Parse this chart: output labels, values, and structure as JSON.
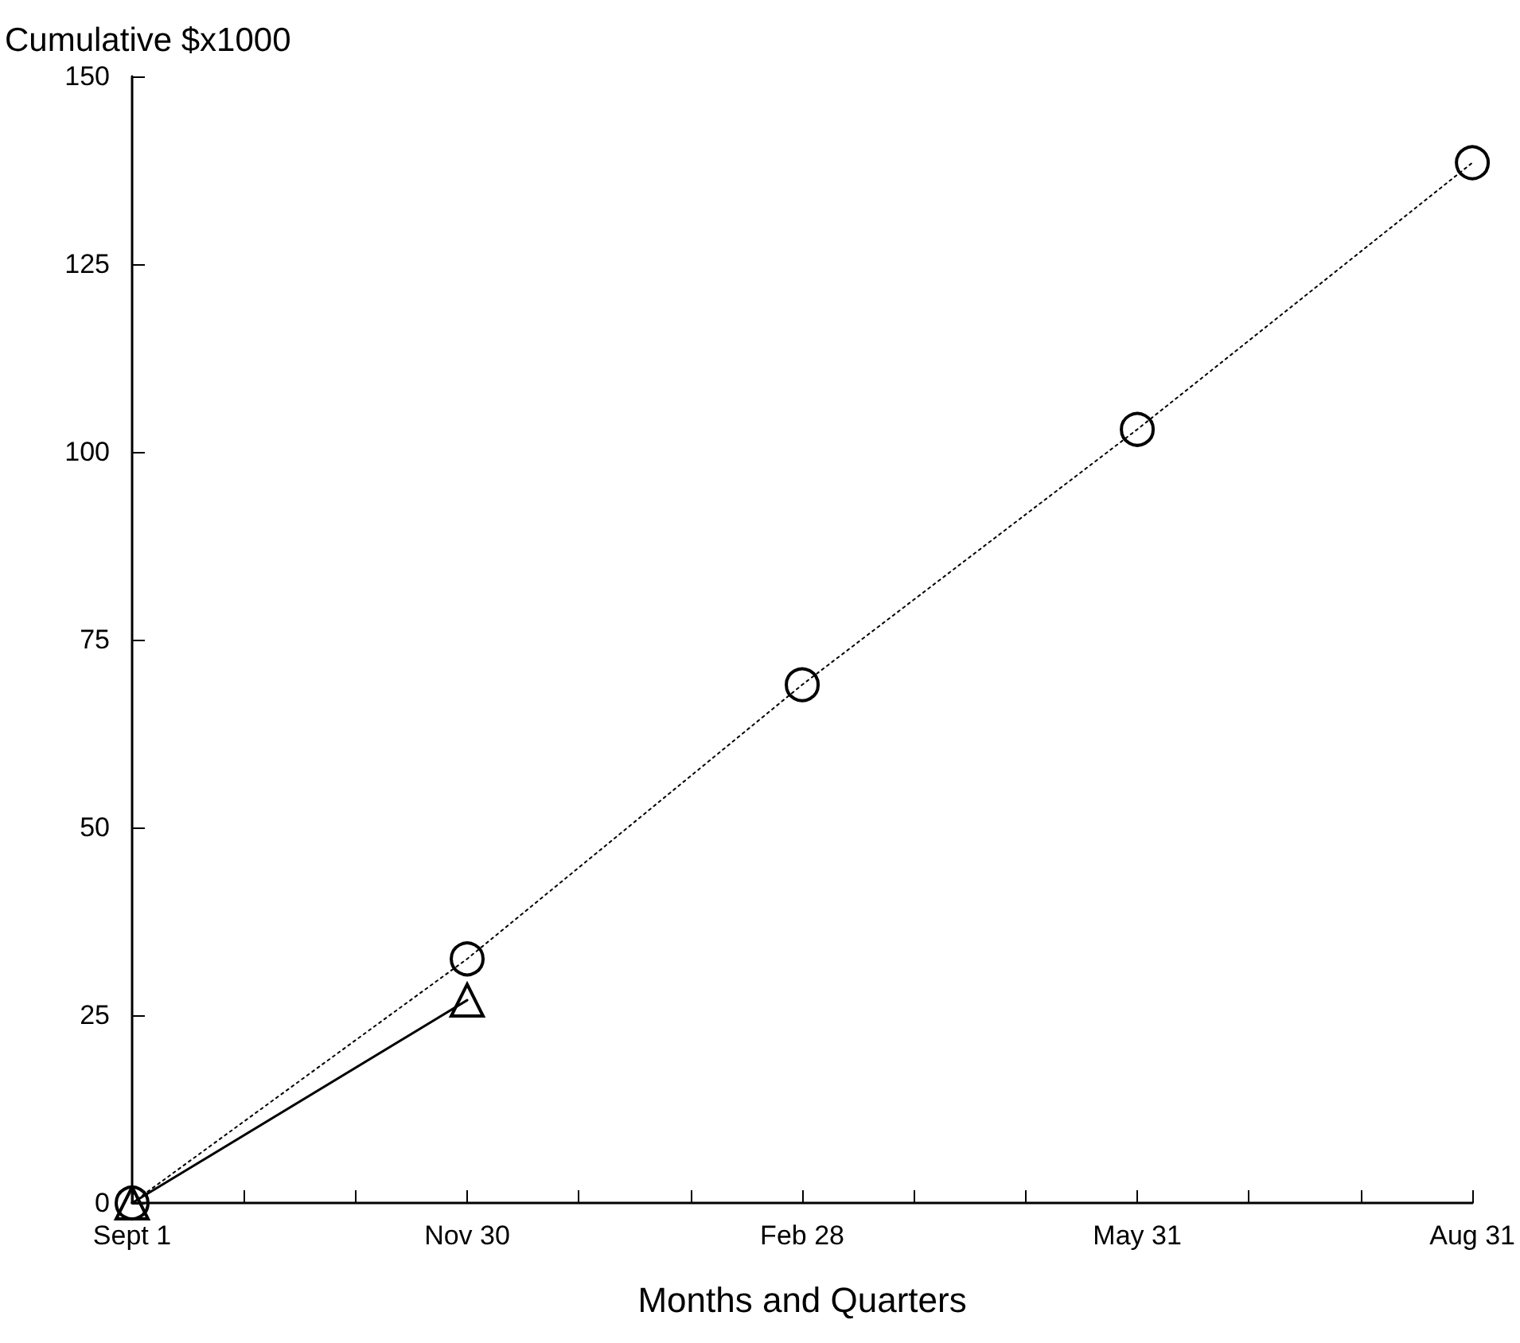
{
  "chart_data": {
    "type": "line",
    "ylabel": "Cumulative $x1000",
    "xlabel": "Months and Quarters",
    "categories": [
      "Sept 1",
      null,
      null,
      "Nov 30",
      null,
      null,
      "Feb 28",
      null,
      null,
      "May 31",
      null,
      null,
      "Aug 31"
    ],
    "series": [
      {
        "color": "#000000",
        "marker": "triangle",
        "line_style": "solid",
        "values": [
          0,
          null,
          null,
          27,
          null,
          null,
          null,
          null,
          null,
          null,
          null,
          null,
          null
        ]
      },
      {
        "color": "#000000",
        "marker": "circle",
        "line_style": "dotted",
        "values": [
          0,
          null,
          null,
          32.5,
          null,
          null,
          69,
          null,
          null,
          103,
          null,
          null,
          138.5
        ]
      }
    ],
    "ylim": [
      0,
      150
    ],
    "yticks": [
      0,
      25,
      50,
      75,
      100,
      125,
      150
    ],
    "grid": false
  }
}
